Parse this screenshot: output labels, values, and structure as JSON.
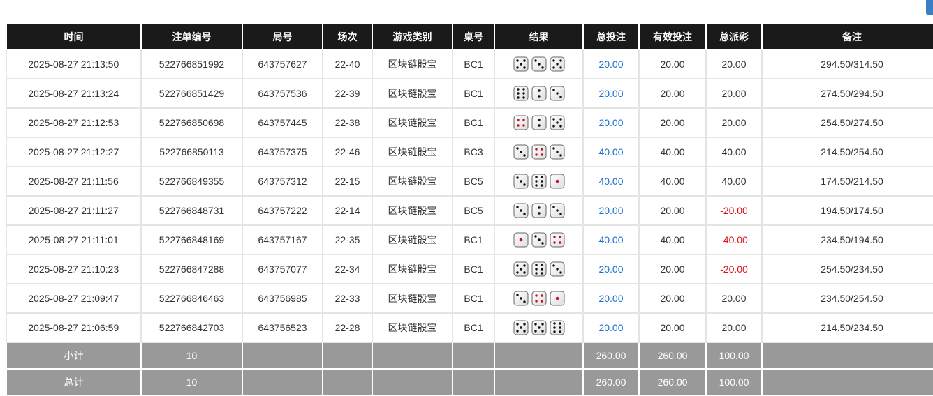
{
  "columns": [
    "时间",
    "注单编号",
    "局号",
    "场次",
    "游戏类别",
    "桌号",
    "结果",
    "总投注",
    "有效投注",
    "总派彩",
    "备注"
  ],
  "colors": {
    "header_bg": "#1a1a1a",
    "total_blue": "#1a6fd0",
    "negative_red": "#e0101a",
    "footer_bg": "#999999"
  },
  "rows": [
    {
      "time": "2025-08-27 21:13:50",
      "bet_id": "522766851992",
      "round": "643757627",
      "session": "22-40",
      "game": "区块链骰宝",
      "table": "BC1",
      "dice": [
        5,
        3,
        5
      ],
      "total": "20.00",
      "valid": "20.00",
      "payout": "20.00",
      "note": "294.50/314.50"
    },
    {
      "time": "2025-08-27 21:13:24",
      "bet_id": "522766851429",
      "round": "643757536",
      "session": "22-39",
      "game": "区块链骰宝",
      "table": "BC1",
      "dice": [
        6,
        2,
        3
      ],
      "total": "20.00",
      "valid": "20.00",
      "payout": "20.00",
      "note": "274.50/294.50"
    },
    {
      "time": "2025-08-27 21:12:53",
      "bet_id": "522766850698",
      "round": "643757445",
      "session": "22-38",
      "game": "区块链骰宝",
      "table": "BC1",
      "dice": [
        4,
        2,
        5
      ],
      "total": "20.00",
      "valid": "20.00",
      "payout": "20.00",
      "note": "254.50/274.50"
    },
    {
      "time": "2025-08-27 21:12:27",
      "bet_id": "522766850113",
      "round": "643757375",
      "session": "22-46",
      "game": "区块链骰宝",
      "table": "BC3",
      "dice": [
        3,
        4,
        3
      ],
      "total": "40.00",
      "valid": "40.00",
      "payout": "40.00",
      "note": "214.50/254.50"
    },
    {
      "time": "2025-08-27 21:11:56",
      "bet_id": "522766849355",
      "round": "643757312",
      "session": "22-15",
      "game": "区块链骰宝",
      "table": "BC5",
      "dice": [
        3,
        6,
        1
      ],
      "total": "40.00",
      "valid": "40.00",
      "payout": "40.00",
      "note": "174.50/214.50"
    },
    {
      "time": "2025-08-27 21:11:27",
      "bet_id": "522766848731",
      "round": "643757222",
      "session": "22-14",
      "game": "区块链骰宝",
      "table": "BC5",
      "dice": [
        3,
        2,
        3
      ],
      "total": "20.00",
      "valid": "20.00",
      "payout": "-20.00",
      "note": "194.50/174.50"
    },
    {
      "time": "2025-08-27 21:11:01",
      "bet_id": "522766848169",
      "round": "643757167",
      "session": "22-35",
      "game": "区块链骰宝",
      "table": "BC1",
      "dice": [
        1,
        3,
        4
      ],
      "total": "40.00",
      "valid": "40.00",
      "payout": "-40.00",
      "note": "234.50/194.50"
    },
    {
      "time": "2025-08-27 21:10:23",
      "bet_id": "522766847288",
      "round": "643757077",
      "session": "22-34",
      "game": "区块链骰宝",
      "table": "BC1",
      "dice": [
        5,
        6,
        3
      ],
      "total": "20.00",
      "valid": "20.00",
      "payout": "-20.00",
      "note": "254.50/234.50"
    },
    {
      "time": "2025-08-27 21:09:47",
      "bet_id": "522766846463",
      "round": "643756985",
      "session": "22-33",
      "game": "区块链骰宝",
      "table": "BC1",
      "dice": [
        3,
        4,
        1
      ],
      "total": "20.00",
      "valid": "20.00",
      "payout": "20.00",
      "note": "234.50/254.50"
    },
    {
      "time": "2025-08-27 21:06:59",
      "bet_id": "522766842703",
      "round": "643756523",
      "session": "22-28",
      "game": "区块链骰宝",
      "table": "BC1",
      "dice": [
        5,
        5,
        6
      ],
      "total": "20.00",
      "valid": "20.00",
      "payout": "20.00",
      "note": "214.50/234.50"
    }
  ],
  "subtotal": {
    "label": "小计",
    "count": "10",
    "total": "260.00",
    "valid": "260.00",
    "payout": "100.00"
  },
  "grand_total": {
    "label": "总计",
    "count": "10",
    "total": "260.00",
    "valid": "260.00",
    "payout": "100.00"
  }
}
